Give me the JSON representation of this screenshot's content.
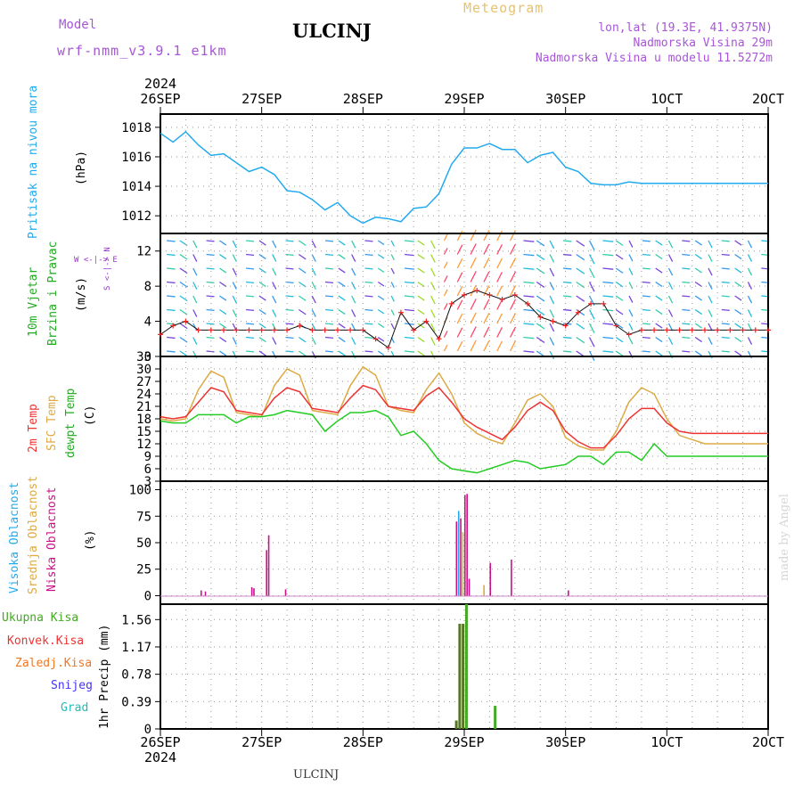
{
  "header": {
    "model_label": "Model",
    "model_value": "wrf-nmm_v3.9.1  e1km",
    "station": "ULCINJ",
    "meteogram": "Meteogram",
    "lonlat": "lon,lat (19.3E, 41.9375N)",
    "altitude": "Nadmorska Visina 29m",
    "model_altitude": "Nadmorska Visina u modelu 11.5272m"
  },
  "footer": {
    "station": "ULCINJ",
    "credit": "made by Angel"
  },
  "time_axis": {
    "year": "2024",
    "labels": [
      "26SEP",
      "27SEP",
      "28SEP",
      "29SEP",
      "30SEP",
      "1OCT",
      "2OCT"
    ]
  },
  "colors": {
    "pressure": "#22aaee",
    "temp2m": "#ee3333",
    "sfc": "#ddaa44",
    "dewpt": "#22cc22",
    "high_cloud": "#22aaee",
    "mid_cloud": "#ddaa44",
    "low_cloud": "#cc1188",
    "total_precip": "#44aa22",
    "conv_precip": "#ee3333",
    "frozen_precip": "#ee7722",
    "snow": "#4433ee",
    "hail": "#22bbbb",
    "wind_text": "#22aa22",
    "compass": "#9933cc"
  },
  "panels": {
    "pressure": {
      "labels": [
        "Pritisak na nivou mora",
        "(hPa)"
      ],
      "ticks": [
        "1012",
        "1014",
        "1016",
        "1018"
      ]
    },
    "wind": {
      "labels": [
        "10m Vjetar",
        "Brzina i Pravac",
        "(m/s)"
      ],
      "ticks": [
        "0",
        "4",
        "8",
        "12"
      ],
      "compass_h": "W <-|-> E",
      "compass_v": "S <-|-> N"
    },
    "temperature": {
      "labels": [
        "2m Temp",
        "SFC Temp",
        "dewpt Temp",
        "(C)"
      ],
      "ticks": [
        "3",
        "6",
        "9",
        "12",
        "15",
        "18",
        "21",
        "24",
        "27",
        "30",
        "33"
      ]
    },
    "cloud": {
      "labels": [
        "Visoka Oblacnost",
        "Srednja Oblacnost",
        "Niska Oblacnost",
        "(%)"
      ],
      "ticks": [
        "0",
        "25",
        "50",
        "75",
        "100"
      ]
    },
    "precip": {
      "labels": [
        "Ukupna Kisa",
        "Konvek.Kisa",
        "Zaledj.Kisa",
        "Snijeg",
        "Grad",
        "1hr Precip (mm)"
      ],
      "ticks": [
        "0",
        "0.39",
        "0.78",
        "1.17",
        "1.56"
      ]
    }
  },
  "chart_data": [
    {
      "type": "line",
      "title": "Pritisak na nivou mora",
      "ylabel": "(hPa)",
      "ylim": [
        1010.8,
        1018.9
      ],
      "x_unit": "hours since 26SEP 00Z",
      "series": [
        {
          "name": "Pritisak na nivou mora",
          "x": [
            0,
            3,
            6,
            9,
            12,
            15,
            18,
            21,
            24,
            27,
            30,
            33,
            36,
            39,
            42,
            45,
            48,
            51,
            54,
            57,
            60,
            63,
            66,
            69,
            72,
            75,
            78,
            81,
            84,
            87,
            90,
            93,
            96,
            99,
            102,
            105,
            108,
            111,
            114,
            117,
            120,
            123,
            126,
            129,
            132,
            135,
            138,
            141,
            144
          ],
          "values": [
            1017.6,
            1017.0,
            1017.7,
            1016.8,
            1016.1,
            1016.2,
            1015.6,
            1015.0,
            1015.3,
            1014.8,
            1013.7,
            1013.6,
            1013.1,
            1012.4,
            1012.9,
            1012.0,
            1011.5,
            1011.9,
            1011.8,
            1011.6,
            1012.5,
            1012.6,
            1013.5,
            1015.5,
            1016.6,
            1016.6,
            1016.9,
            1016.5,
            1016.5,
            1015.6,
            1016.1,
            1016.3,
            1015.3,
            1015.0,
            1014.2,
            1014.1,
            1014.1,
            1014.3,
            1014.2,
            1014.2,
            1014.2,
            1014.2,
            1014.2,
            1014.2,
            1014.2,
            1014.2,
            1014.2,
            1014.2,
            1014.2
          ]
        }
      ]
    },
    {
      "type": "line",
      "title": "10m Vjetar Brzina i Pravac",
      "ylabel": "(m/s)",
      "ylim": [
        0,
        14
      ],
      "x_unit": "hours since 26SEP 00Z",
      "series": [
        {
          "name": "10m Vjetar",
          "x": [
            0,
            3,
            6,
            9,
            12,
            15,
            18,
            21,
            24,
            27,
            30,
            33,
            36,
            39,
            42,
            45,
            48,
            51,
            54,
            57,
            60,
            63,
            66,
            69,
            72,
            75,
            78,
            81,
            84,
            87,
            90,
            93,
            96,
            99,
            102,
            105,
            108,
            111,
            114,
            117,
            120,
            123,
            126,
            129,
            132,
            135,
            138,
            141,
            144
          ],
          "values": [
            2.5,
            3.5,
            4.0,
            3.0,
            3.0,
            3.0,
            3.0,
            3.0,
            3.0,
            3.0,
            3.0,
            3.5,
            3.0,
            3.0,
            3.0,
            3.0,
            3.0,
            2.0,
            1.0,
            5.0,
            3.0,
            4.0,
            2.0,
            6.0,
            7.0,
            7.5,
            7.0,
            6.5,
            7.0,
            6.0,
            4.5,
            4.0,
            3.5,
            5.0,
            6.0,
            6.0,
            3.5,
            2.5,
            3.0,
            3.0,
            3.0,
            3.0,
            3.0,
            3.0,
            3.0,
            3.0,
            3.0,
            3.0,
            3.0
          ]
        }
      ]
    },
    {
      "type": "line",
      "title": "2m Temp / SFC Temp / dewpt Temp",
      "ylabel": "(C)",
      "ylim": [
        3,
        33
      ],
      "x_unit": "hours since 26SEP 00Z",
      "series": [
        {
          "name": "2m Temp",
          "x": [
            0,
            3,
            6,
            9,
            12,
            15,
            18,
            21,
            24,
            27,
            30,
            33,
            36,
            39,
            42,
            45,
            48,
            51,
            54,
            57,
            60,
            63,
            66,
            69,
            72,
            75,
            78,
            81,
            84,
            87,
            90,
            93,
            96,
            99,
            102,
            105,
            108,
            111,
            114,
            117,
            120,
            123,
            126,
            129,
            132,
            135,
            138,
            141,
            144
          ],
          "values": [
            18.5,
            18.0,
            18.5,
            22,
            25.5,
            24.5,
            20,
            19.5,
            19,
            23,
            25.5,
            24.5,
            20.5,
            20,
            19.5,
            23,
            26,
            25,
            21,
            20.5,
            20,
            23.5,
            25.5,
            22,
            18,
            16,
            14.5,
            13,
            16,
            20,
            22,
            20,
            15,
            12.5,
            11,
            11,
            14,
            18,
            20.5,
            20.5,
            17,
            15,
            14.5,
            14.5,
            14.5,
            14.5,
            14.5,
            14.5,
            14.5
          ]
        },
        {
          "name": "SFC Temp",
          "x": [
            0,
            3,
            6,
            9,
            12,
            15,
            18,
            21,
            24,
            27,
            30,
            33,
            36,
            39,
            42,
            45,
            48,
            51,
            54,
            57,
            60,
            63,
            66,
            69,
            72,
            75,
            78,
            81,
            84,
            87,
            90,
            93,
            96,
            99,
            102,
            105,
            108,
            111,
            114,
            117,
            120,
            123,
            126,
            129,
            132,
            135,
            138,
            141,
            144
          ],
          "values": [
            18,
            17.5,
            18,
            25,
            29.5,
            28,
            19.5,
            19,
            18.5,
            26,
            30,
            28.5,
            20,
            19.5,
            19,
            26,
            30.5,
            28.5,
            21,
            20,
            19.5,
            25,
            29,
            24,
            17,
            14.5,
            13,
            12,
            17,
            22.5,
            24,
            21,
            13.5,
            11.5,
            10.5,
            10.5,
            15,
            22,
            25.5,
            24,
            18,
            14,
            13,
            12,
            12,
            12,
            12,
            12,
            12
          ]
        },
        {
          "name": "dewpt Temp",
          "x": [
            0,
            3,
            6,
            9,
            12,
            15,
            18,
            21,
            24,
            27,
            30,
            33,
            36,
            39,
            42,
            45,
            48,
            51,
            54,
            57,
            60,
            63,
            66,
            69,
            72,
            75,
            78,
            81,
            84,
            87,
            90,
            93,
            96,
            99,
            102,
            105,
            108,
            111,
            114,
            117,
            120,
            123,
            126,
            129,
            132,
            135,
            138,
            141,
            144
          ],
          "values": [
            17.5,
            17,
            17,
            19,
            19,
            19,
            17,
            18.5,
            18.5,
            19,
            20,
            19.5,
            19,
            15,
            17.5,
            19.5,
            19.5,
            20,
            18.5,
            14,
            15,
            12,
            8,
            6,
            5.5,
            5,
            6,
            7,
            8,
            7.5,
            6,
            6.5,
            7,
            9,
            9,
            7,
            10,
            10,
            8,
            12,
            9,
            9,
            9,
            9,
            9,
            9,
            9,
            9,
            9
          ]
        }
      ]
    },
    {
      "type": "bar",
      "title": "Oblacnost",
      "ylabel": "(%)",
      "ylim": [
        0,
        100
      ],
      "x_unit": "hours since 26SEP 00Z",
      "series": [
        {
          "name": "Visoka Oblacnost",
          "x": [
            70.5
          ],
          "values": [
            80
          ]
        },
        {
          "name": "Srednja Oblacnost",
          "x": [
            71.5,
            76.5
          ],
          "values": [
            60,
            10
          ]
        },
        {
          "name": "Niska Oblacnost",
          "x": [
            9.5,
            10.5,
            21.5,
            22,
            25,
            25.5,
            29.5,
            70,
            71,
            72,
            72.5,
            73,
            78,
            83,
            96.5
          ],
          "values": [
            5,
            4,
            8,
            7,
            43,
            57,
            6,
            70,
            73,
            95,
            96,
            16,
            31,
            34,
            5
          ]
        }
      ]
    },
    {
      "type": "bar",
      "title": "1hr Precip",
      "ylabel": "1hr Precip (mm)",
      "ylim": [
        0,
        1.78
      ],
      "x_unit": "hours since 26SEP 00Z",
      "series": [
        {
          "name": "Ukupna Kisa",
          "x": [
            69.8,
            70.6,
            71.4,
            72.2,
            79.0
          ],
          "values": [
            0.12,
            1.5,
            1.5,
            1.78,
            0.33
          ]
        },
        {
          "name": "Konvek.Kisa",
          "x": [],
          "values": []
        },
        {
          "name": "Zaledj.Kisa",
          "x": [],
          "values": []
        },
        {
          "name": "Snijeg",
          "x": [],
          "values": []
        },
        {
          "name": "Grad",
          "x": [],
          "values": []
        }
      ]
    }
  ]
}
